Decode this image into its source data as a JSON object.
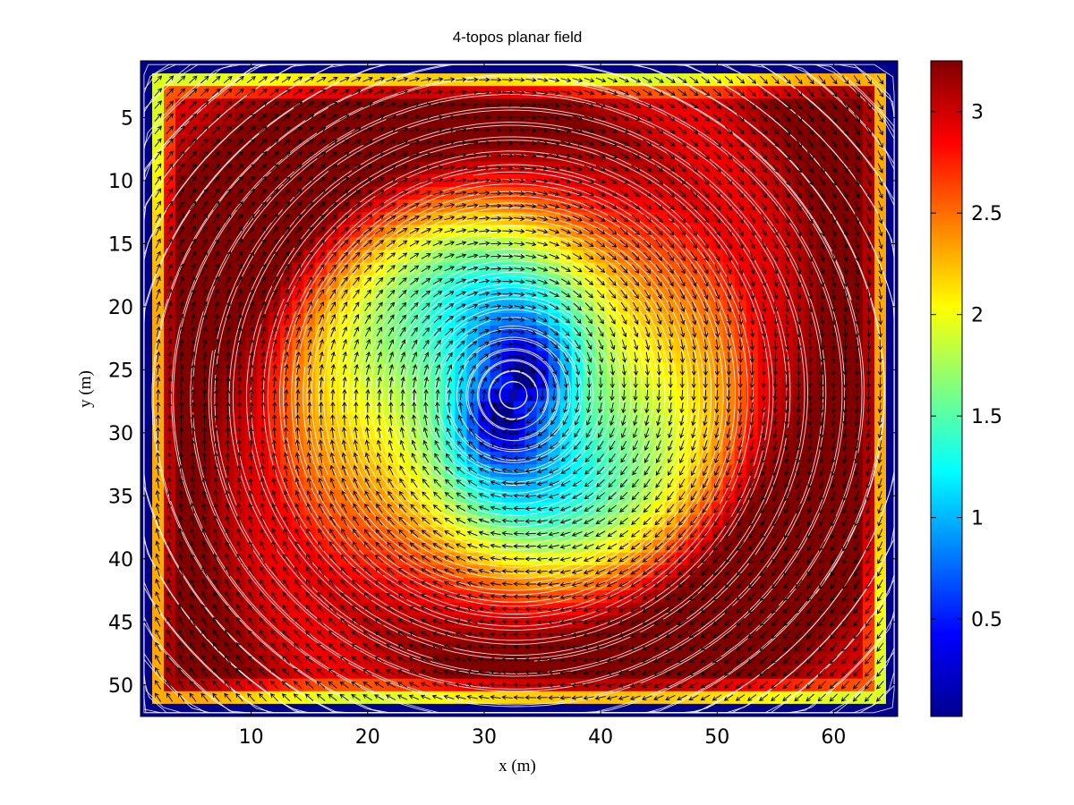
{
  "chart_data": {
    "type": "heatmap",
    "title": "4-topos planar field",
    "xlabel": "x (m)",
    "ylabel": "y (m)",
    "xlim": [
      0.5,
      65.5
    ],
    "ylim": [
      0.5,
      52.5
    ],
    "y_reversed": true,
    "x_ticks": [
      10,
      20,
      30,
      40,
      50,
      60
    ],
    "y_ticks": [
      5,
      10,
      15,
      20,
      25,
      30,
      35,
      40,
      45,
      50
    ],
    "grid": false,
    "colormap": "jet",
    "colorbar": {
      "range": [
        0.02,
        3.25
      ],
      "ticks": [
        0.5,
        1,
        1.5,
        2,
        2.5,
        3
      ]
    },
    "field": {
      "vortex_center": [
        32.5,
        27
      ],
      "center_speed": 0.3,
      "ring_speed": 2.0,
      "ring_radius_m": 13,
      "outer_speed": 3.2,
      "border_speed": 0.05,
      "rotation": "clockwise"
    },
    "overlays": [
      "quiver arrows (black)",
      "streamlines (white)"
    ]
  }
}
